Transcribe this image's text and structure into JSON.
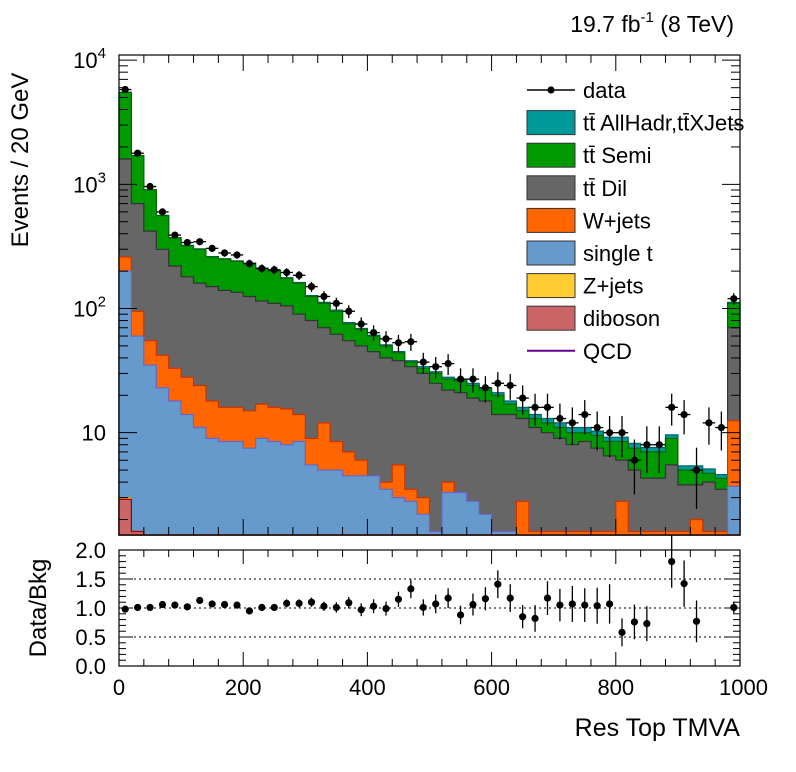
{
  "header": {
    "lumi_label": "19.7 fb",
    "lumi_sup": "-1",
    "energy_label": " (8 TeV)"
  },
  "chart_data": [
    {
      "type": "area",
      "title": "",
      "xlabel": "",
      "ylabel": "Events / 20 GeV",
      "yscale": "log",
      "xlim": [
        0,
        1000
      ],
      "ylim": [
        1.5,
        11000
      ],
      "y_tick_labels": [
        {
          "value": 10,
          "text": "10"
        },
        {
          "value": 100,
          "base": "10",
          "exp": "2"
        },
        {
          "value": 1000,
          "base": "10",
          "exp": "3"
        },
        {
          "value": 10000,
          "base": "10",
          "exp": "4"
        }
      ],
      "bin_edges": [
        0,
        20,
        40,
        60,
        80,
        100,
        120,
        140,
        160,
        180,
        200,
        220,
        240,
        260,
        280,
        300,
        320,
        340,
        360,
        380,
        400,
        420,
        440,
        460,
        480,
        500,
        520,
        540,
        560,
        580,
        600,
        620,
        640,
        660,
        680,
        700,
        720,
        740,
        760,
        780,
        800,
        820,
        840,
        860,
        880,
        900,
        920,
        940,
        960,
        980,
        1000
      ],
      "legend_position": "top-right",
      "legend": [
        {
          "label": "data",
          "style": "marker"
        },
        {
          "label": "tt̄ AllHadr,tt̄XJets",
          "style": "fill",
          "color": "#00999a"
        },
        {
          "label": "tt̄ Semi",
          "style": "fill",
          "color": "#009900"
        },
        {
          "label": "tt̄ Dil",
          "style": "fill",
          "color": "#666666"
        },
        {
          "label": "W+jets",
          "style": "fill",
          "color": "#ff6600"
        },
        {
          "label": "single t",
          "style": "fill",
          "color": "#6699cc"
        },
        {
          "label": "Z+jets",
          "style": "fill",
          "color": "#ffcc33"
        },
        {
          "label": "diboson",
          "style": "fill",
          "color": "#cc6666"
        },
        {
          "label": "QCD",
          "style": "line",
          "color": "#660099"
        }
      ],
      "stack_cumulative": {
        "diboson": [
          2.9,
          1.6,
          0,
          0,
          0,
          0,
          0,
          0,
          0,
          0,
          0,
          0,
          0,
          0,
          0,
          0,
          0,
          0,
          0,
          0,
          0,
          0,
          0,
          0,
          0,
          0,
          0,
          0,
          0,
          0,
          0,
          0,
          0,
          0,
          0,
          0,
          0,
          0,
          0,
          0,
          0,
          0,
          0,
          0,
          0,
          0,
          0,
          0,
          0,
          0
        ],
        "zjets": [
          3.0,
          1.6,
          0,
          0,
          0,
          0,
          0,
          0,
          0,
          0,
          0,
          0,
          0,
          0,
          0,
          0,
          0,
          0,
          0,
          0,
          0,
          0,
          0,
          0,
          0,
          0,
          0,
          0,
          0,
          0,
          0,
          0,
          0,
          0,
          0,
          0,
          0,
          0,
          0,
          0,
          0,
          0,
          0,
          0,
          0,
          0,
          0,
          0,
          0,
          0
        ],
        "single_t": [
          200,
          60,
          35,
          23,
          18,
          14,
          11,
          9,
          8.5,
          8.5,
          7.5,
          9,
          8.5,
          8,
          8.5,
          5.5,
          5,
          5,
          4.5,
          4.5,
          4.5,
          3.5,
          3,
          2.8,
          2.2,
          1.6,
          3.3,
          3.3,
          2.8,
          2.2,
          1.6,
          1.6,
          0,
          0,
          0,
          0,
          0,
          0,
          0,
          0,
          0,
          0,
          0,
          0,
          0,
          0,
          0,
          0,
          0,
          3.7
        ],
        "wjets": [
          260,
          95,
          55,
          42,
          33,
          28,
          24,
          18,
          16,
          16,
          15,
          17,
          16,
          15.5,
          14,
          9,
          12,
          8.5,
          7,
          6,
          4.5,
          4,
          5.5,
          3.5,
          3,
          1.6,
          4,
          3.3,
          2.2,
          1.6,
          1.6,
          1.6,
          2.8,
          1.6,
          1.6,
          1.6,
          1.6,
          1.6,
          1.6,
          1.6,
          2.8,
          1.6,
          1.6,
          1.6,
          1.6,
          1.6,
          2.0,
          1.6,
          1.6,
          12.5
        ],
        "dil": [
          1600,
          700,
          420,
          300,
          220,
          180,
          160,
          150,
          140,
          135,
          125,
          115,
          110,
          105,
          90,
          80,
          70,
          62,
          55,
          50,
          45,
          40,
          38,
          34,
          30,
          25,
          22,
          21,
          19,
          18,
          14,
          14,
          13,
          11,
          10,
          9,
          8,
          8.5,
          7.5,
          6.5,
          6,
          5,
          4.3,
          4.3,
          5.5,
          3.8,
          3.8,
          4,
          3.5,
          70
        ],
        "semi": [
          5500,
          1700,
          900,
          560,
          370,
          320,
          300,
          260,
          250,
          240,
          230,
          210,
          200,
          175,
          160,
          125,
          110,
          95,
          75,
          68,
          60,
          50,
          44,
          37,
          33,
          30,
          27,
          26,
          24,
          22,
          20,
          17,
          15,
          13,
          12,
          11,
          10,
          10,
          9.5,
          8.5,
          8.5,
          7.5,
          7,
          7,
          9,
          5,
          5,
          4.7,
          4.3,
          110
        ],
        "allhadr": [
          5520,
          1705,
          905,
          563,
          372,
          322,
          302,
          262,
          252,
          242,
          232,
          212,
          202,
          177,
          162,
          127,
          112,
          97,
          77,
          69,
          61,
          51,
          45,
          38,
          34,
          31,
          28,
          27,
          25,
          23,
          21,
          18,
          16,
          14,
          13,
          12,
          11,
          11,
          10.3,
          9.2,
          9.2,
          8.2,
          7.6,
          7.6,
          9.6,
          5.4,
          5.4,
          5.1,
          4.6,
          112
        ]
      },
      "data_points": {
        "y": [
          5800,
          1780,
          960,
          600,
          390,
          340,
          345,
          305,
          280,
          270,
          230,
          210,
          205,
          195,
          185,
          150,
          125,
          110,
          95,
          75,
          64,
          57,
          53,
          54,
          37,
          34,
          36,
          27,
          27,
          23,
          25,
          24,
          19,
          16,
          16,
          13,
          12,
          14,
          11,
          10,
          10,
          6,
          8,
          8,
          16,
          14,
          5,
          12,
          11,
          120
        ]
      }
    },
    {
      "type": "scatter",
      "title": "",
      "xlabel": "Res Top TMVA",
      "ylabel": "Data/Bkg",
      "xlim": [
        0,
        1000
      ],
      "ylim": [
        0,
        2
      ],
      "x_ticks": [
        0,
        200,
        400,
        600,
        800,
        1000
      ],
      "y_ticks": [
        0.0,
        0.5,
        1.0,
        1.5,
        2.0
      ],
      "y_tick_labels": [
        "0.0",
        "0.5",
        "1.0",
        "1.5",
        "2.0"
      ],
      "grid": "dotted at 0.5, 1.0, 1.5",
      "points": [
        {
          "x": 10,
          "y": 0.98,
          "err": 0.03
        },
        {
          "x": 30,
          "y": 1.01,
          "err": 0.03
        },
        {
          "x": 50,
          "y": 1.01,
          "err": 0.04
        },
        {
          "x": 70,
          "y": 1.06,
          "err": 0.05
        },
        {
          "x": 90,
          "y": 1.05,
          "err": 0.05
        },
        {
          "x": 110,
          "y": 1.02,
          "err": 0.05
        },
        {
          "x": 130,
          "y": 1.13,
          "err": 0.05
        },
        {
          "x": 150,
          "y": 1.07,
          "err": 0.05
        },
        {
          "x": 170,
          "y": 1.06,
          "err": 0.05
        },
        {
          "x": 190,
          "y": 1.05,
          "err": 0.06
        },
        {
          "x": 210,
          "y": 0.95,
          "err": 0.06
        },
        {
          "x": 230,
          "y": 1.01,
          "err": 0.06
        },
        {
          "x": 250,
          "y": 1.01,
          "err": 0.06
        },
        {
          "x": 270,
          "y": 1.08,
          "err": 0.07
        },
        {
          "x": 290,
          "y": 1.08,
          "err": 0.07
        },
        {
          "x": 310,
          "y": 1.1,
          "err": 0.08
        },
        {
          "x": 330,
          "y": 1.03,
          "err": 0.08
        },
        {
          "x": 350,
          "y": 1.01,
          "err": 0.09
        },
        {
          "x": 370,
          "y": 1.09,
          "err": 0.1
        },
        {
          "x": 390,
          "y": 0.97,
          "err": 0.11
        },
        {
          "x": 410,
          "y": 1.03,
          "err": 0.12
        },
        {
          "x": 430,
          "y": 0.99,
          "err": 0.12
        },
        {
          "x": 450,
          "y": 1.15,
          "err": 0.13
        },
        {
          "x": 470,
          "y": 1.33,
          "err": 0.16
        },
        {
          "x": 490,
          "y": 1.01,
          "err": 0.14
        },
        {
          "x": 510,
          "y": 1.07,
          "err": 0.16
        },
        {
          "x": 530,
          "y": 1.17,
          "err": 0.17
        },
        {
          "x": 550,
          "y": 0.88,
          "err": 0.16
        },
        {
          "x": 570,
          "y": 1.06,
          "err": 0.19
        },
        {
          "x": 590,
          "y": 1.16,
          "err": 0.2
        },
        {
          "x": 610,
          "y": 1.41,
          "err": 0.24
        },
        {
          "x": 630,
          "y": 1.17,
          "err": 0.24
        },
        {
          "x": 650,
          "y": 0.85,
          "err": 0.2
        },
        {
          "x": 670,
          "y": 0.82,
          "err": 0.23
        },
        {
          "x": 690,
          "y": 1.17,
          "err": 0.29
        },
        {
          "x": 710,
          "y": 1.05,
          "err": 0.28
        },
        {
          "x": 730,
          "y": 1.07,
          "err": 0.31
        },
        {
          "x": 750,
          "y": 1.05,
          "err": 0.29
        },
        {
          "x": 770,
          "y": 1.04,
          "err": 0.31
        },
        {
          "x": 790,
          "y": 1.07,
          "err": 0.34
        },
        {
          "x": 810,
          "y": 0.58,
          "err": 0.24
        },
        {
          "x": 830,
          "y": 0.76,
          "err": 0.3
        },
        {
          "x": 850,
          "y": 0.73,
          "err": 0.3
        },
        {
          "x": 890,
          "y": 1.8,
          "err": 0.45
        },
        {
          "x": 910,
          "y": 1.42,
          "err": 0.4
        },
        {
          "x": 930,
          "y": 0.77,
          "err": 0.36
        },
        {
          "x": 990,
          "y": 1.01,
          "err": 0.1
        }
      ]
    }
  ]
}
